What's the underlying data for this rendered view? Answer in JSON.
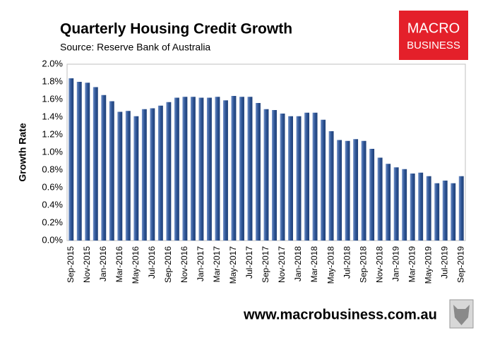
{
  "chart_data": {
    "type": "bar",
    "title": "Quarterly Housing Credit Growth",
    "subtitle": "Source: Reserve Bank of Australia",
    "y_label": "Growth Rate",
    "logo": [
      "MACRO",
      "BUSINESS"
    ],
    "footer": "www.macrobusiness.com.au",
    "color": "#2e5596",
    "categories": [
      "Sep-2015",
      null,
      "Nov-2015",
      null,
      "Jan-2016",
      null,
      "Mar-2016",
      null,
      "May-2016",
      null,
      "Jul-2016",
      null,
      "Sep-2016",
      null,
      "Nov-2016",
      null,
      "Jan-2017",
      null,
      "Mar-2017",
      null,
      "May-2017",
      null,
      "Jul-2017",
      null,
      "Sep-2017",
      null,
      "Nov-2017",
      null,
      "Jan-2018",
      null,
      "Mar-2018",
      null,
      "May-2018",
      null,
      "Jul-2018",
      null,
      "Sep-2018",
      null,
      "Nov-2018",
      null,
      "Jan-2019",
      null,
      "Mar-2019",
      null,
      "May-2019",
      null,
      "Jul-2019",
      null,
      "Sep-2019"
    ],
    "values": [
      1.84,
      1.8,
      1.79,
      1.74,
      1.65,
      1.58,
      1.46,
      1.47,
      1.41,
      1.49,
      1.5,
      1.53,
      1.57,
      1.62,
      1.63,
      1.63,
      1.62,
      1.62,
      1.63,
      1.59,
      1.64,
      1.63,
      1.63,
      1.56,
      1.49,
      1.48,
      1.44,
      1.41,
      1.41,
      1.45,
      1.45,
      1.37,
      1.24,
      1.14,
      1.13,
      1.15,
      1.13,
      1.04,
      0.94,
      0.87,
      0.83,
      0.81,
      0.76,
      0.77,
      0.73,
      0.65,
      0.68,
      0.65,
      0.73
    ],
    "ylim": [
      0,
      2.0
    ],
    "yticks": [
      {
        "value": 0,
        "label": "0.0%"
      },
      {
        "value": 0.2,
        "label": "0.2%"
      },
      {
        "value": 0.4,
        "label": "0.4%"
      },
      {
        "value": 0.6,
        "label": "0.6%"
      },
      {
        "value": 0.8,
        "label": "0.8%"
      },
      {
        "value": 1.0,
        "label": "1.0%"
      },
      {
        "value": 1.2,
        "label": "1.2%"
      },
      {
        "value": 1.4,
        "label": "1.4%"
      },
      {
        "value": 1.6,
        "label": "1.6%"
      },
      {
        "value": 1.8,
        "label": "1.8%"
      },
      {
        "value": 2.0,
        "label": "2.0%"
      }
    ],
    "grid": false
  }
}
